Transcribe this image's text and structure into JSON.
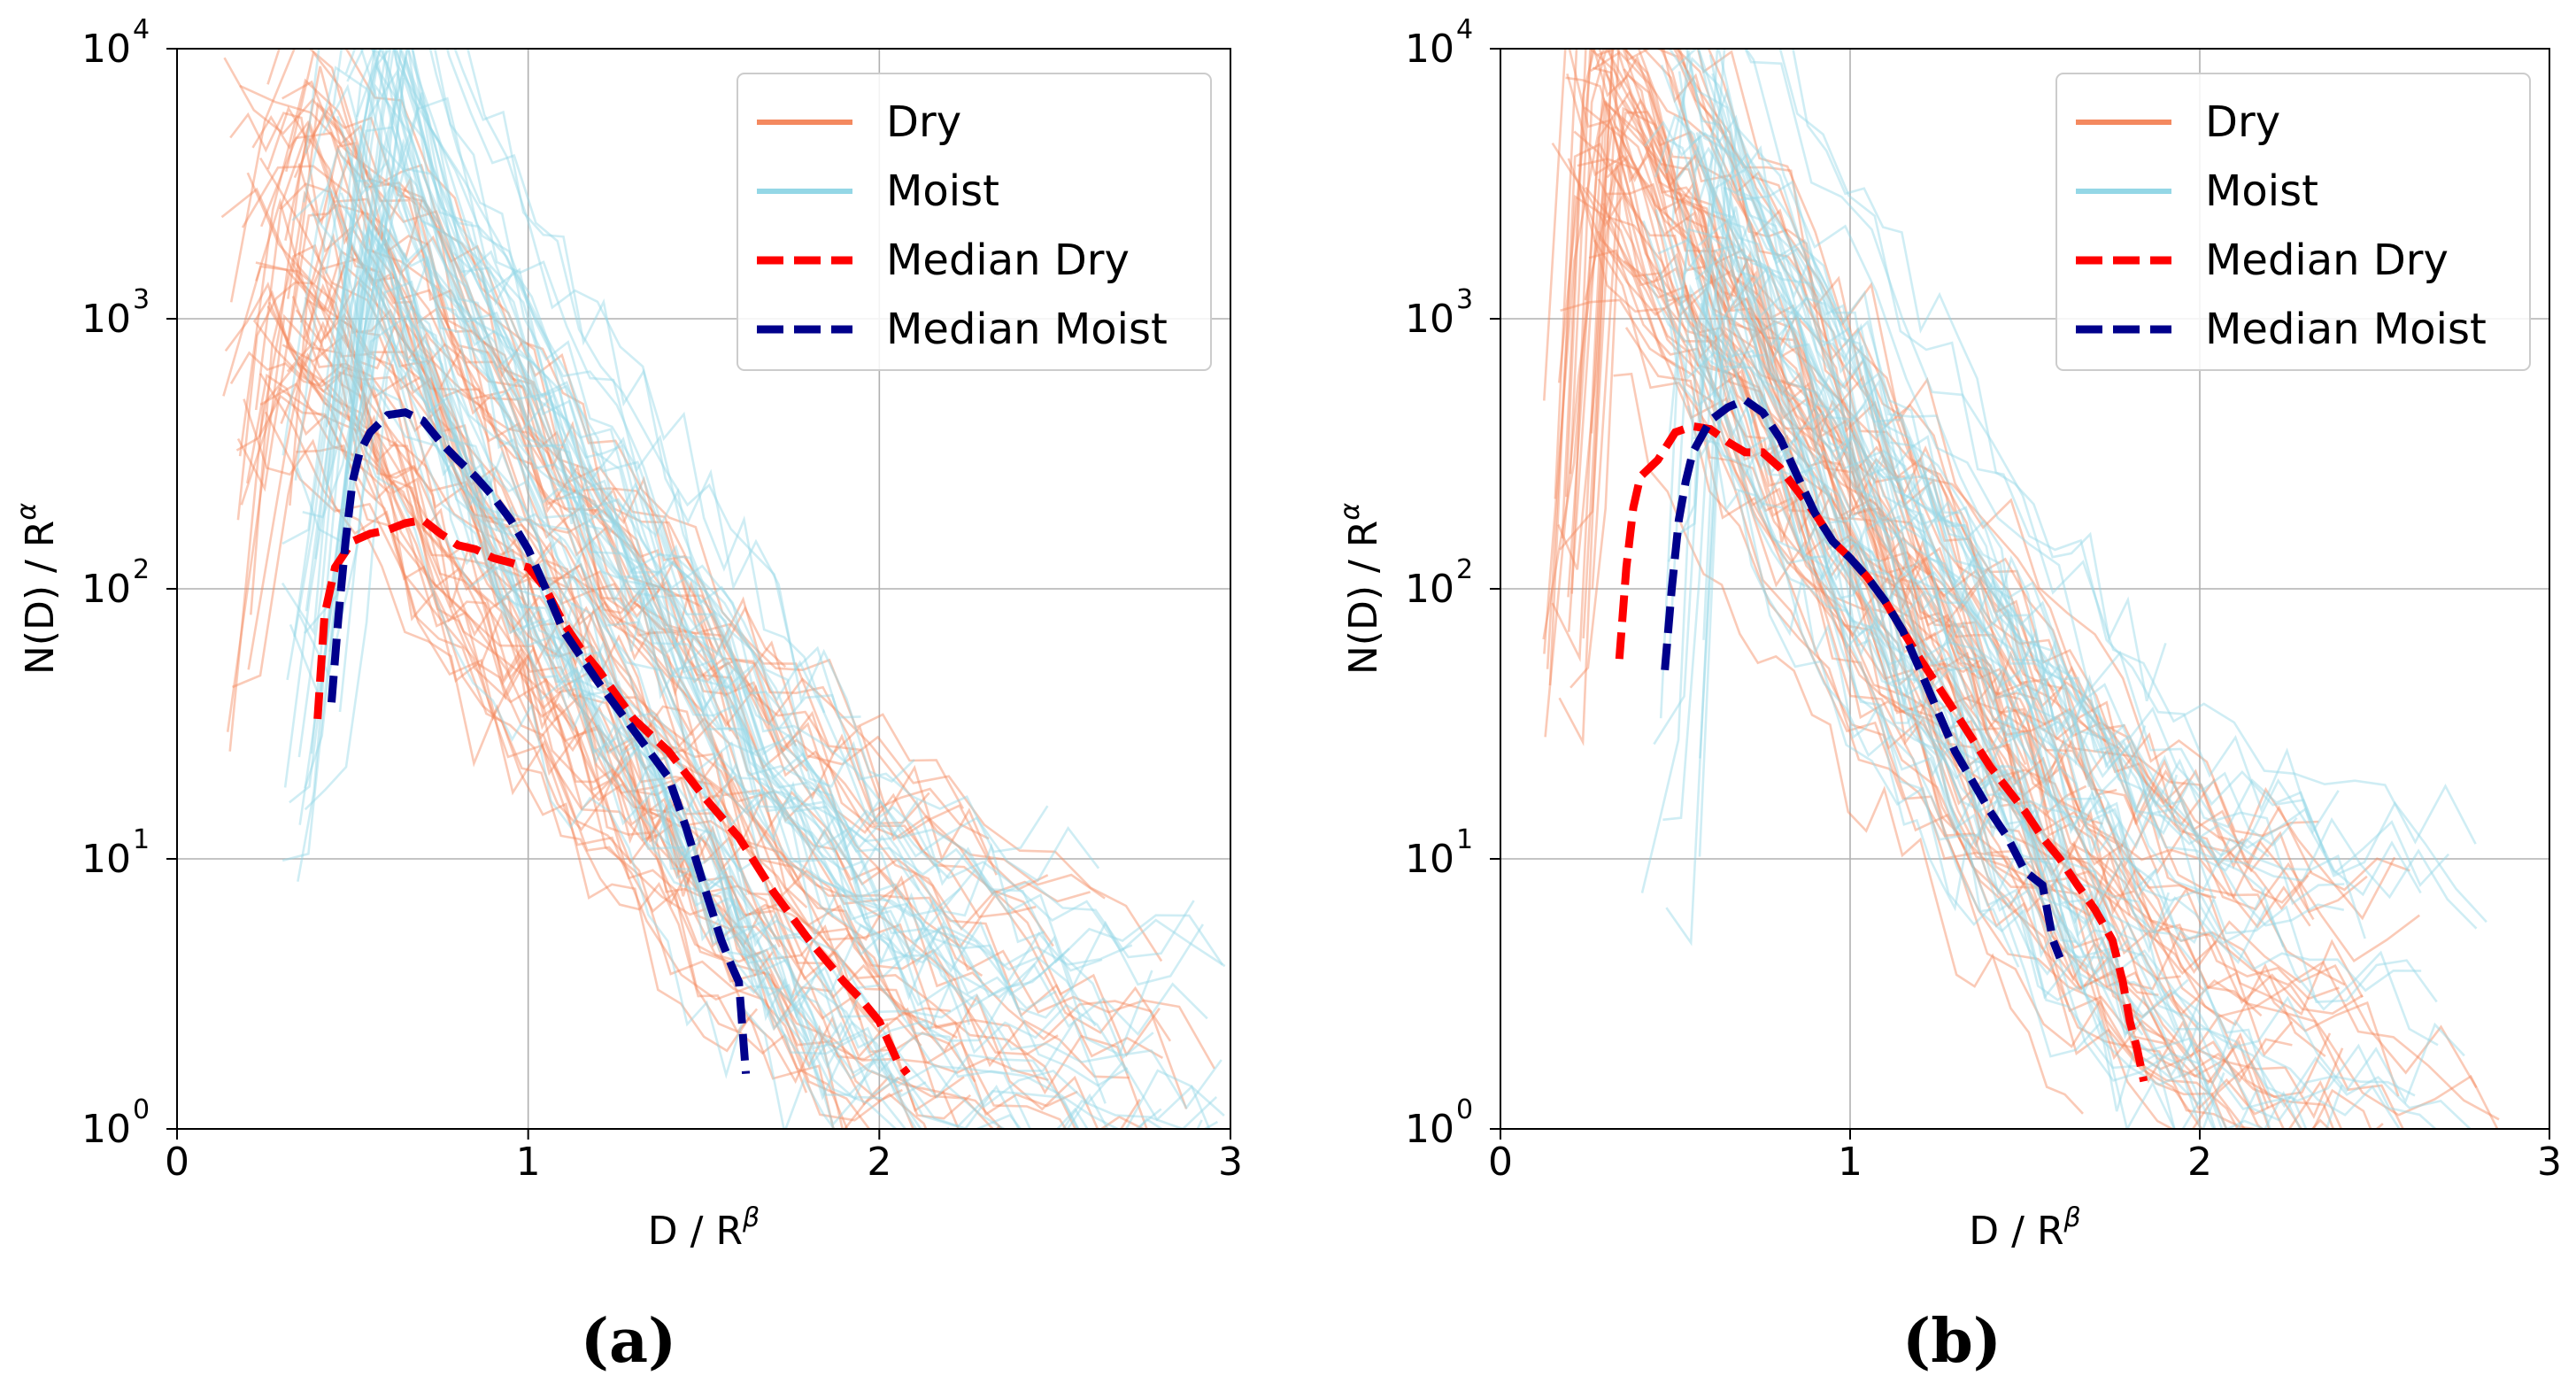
{
  "chart_data": [
    {
      "type": "line",
      "panel_label": "(a)",
      "xlabel": "D / R",
      "xlabel_sup": "β",
      "ylabel": "N(D) / R",
      "ylabel_sup": "α",
      "xlim": [
        0,
        3
      ],
      "ylim": [
        1,
        10000
      ],
      "yscale": "log",
      "grid": true,
      "legend_position": "top-right",
      "x_ticks": [
        0,
        1,
        2,
        3
      ],
      "x_tick_labels": [
        "0",
        "1",
        "2",
        "3"
      ],
      "y_ticks": [
        1,
        10,
        100,
        1000,
        10000
      ],
      "y_tick_bases": [
        "10",
        "10",
        "10",
        "10",
        "10"
      ],
      "y_tick_exps": [
        "0",
        "1",
        "2",
        "3",
        "4"
      ],
      "legend": [
        {
          "label": "Dry",
          "color": "#F4895F",
          "dash": false
        },
        {
          "label": "Moist",
          "color": "#94D7E6",
          "dash": false
        },
        {
          "label": "Median Dry",
          "color": "#FF0000",
          "dash": true
        },
        {
          "label": "Median Moist",
          "color": "#00008B",
          "dash": true
        }
      ],
      "series": [
        {
          "name": "Median Dry",
          "color": "#FF0000",
          "x": [
            0.4,
            0.42,
            0.45,
            0.5,
            0.55,
            0.6,
            0.65,
            0.7,
            0.75,
            0.8,
            0.85,
            0.9,
            0.95,
            1.0,
            1.05,
            1.1,
            1.15,
            1.2,
            1.3,
            1.4,
            1.5,
            1.6,
            1.7,
            1.8,
            1.9,
            1.95,
            2.0,
            2.05,
            2.08
          ],
          "y": [
            33,
            80,
            120,
            150,
            160,
            165,
            175,
            180,
            160,
            145,
            140,
            130,
            125,
            120,
            100,
            75,
            60,
            50,
            33,
            25,
            17,
            12,
            7.5,
            5,
            3.5,
            3,
            2.5,
            1.8,
            1.6
          ]
        },
        {
          "name": "Median Moist",
          "color": "#00008B",
          "x": [
            0.44,
            0.46,
            0.48,
            0.5,
            0.52,
            0.55,
            0.6,
            0.65,
            0.7,
            0.75,
            0.8,
            0.85,
            0.9,
            0.95,
            1.0,
            1.05,
            1.1,
            1.2,
            1.3,
            1.4,
            1.45,
            1.5,
            1.55,
            1.58,
            1.6,
            1.62
          ],
          "y": [
            38,
            80,
            150,
            250,
            320,
            380,
            440,
            450,
            420,
            350,
            300,
            260,
            220,
            180,
            140,
            100,
            70,
            45,
            30,
            20,
            13,
            8,
            5,
            4,
            3.5,
            1.6
          ]
        },
        {
          "name": "Dry",
          "color": "#F4895F",
          "x": [
            0.12,
            0.2,
            0.3,
            0.4,
            0.5,
            0.6,
            0.7,
            0.8,
            0.9,
            1.0,
            1.2,
            1.4,
            1.6,
            1.8,
            2.0,
            2.2,
            2.4,
            2.6,
            2.8,
            3.0
          ],
          "y": [
            100,
            1500,
            2200,
            1800,
            1300,
            900,
            500,
            300,
            200,
            130,
            60,
            30,
            15,
            8,
            5,
            3.5,
            2.5,
            1.8,
            1.3,
            1.0
          ]
        },
        {
          "name": "Moist",
          "color": "#94D7E6",
          "x": [
            0.3,
            0.4,
            0.45,
            0.5,
            0.55,
            0.6,
            0.7,
            0.8,
            0.9,
            1.0,
            1.2,
            1.4,
            1.6,
            1.8,
            2.0,
            2.2,
            2.4,
            2.6,
            2.8,
            3.0
          ],
          "y": [
            50,
            700,
            2500,
            6000,
            6500,
            3500,
            1500,
            700,
            400,
            250,
            100,
            40,
            15,
            7,
            4,
            3,
            2.5,
            2,
            1.8,
            1.6
          ]
        }
      ]
    },
    {
      "type": "line",
      "panel_label": "(b)",
      "xlabel": "D / R",
      "xlabel_sup": "β",
      "ylabel": "N(D) / R",
      "ylabel_sup": "α",
      "xlim": [
        0,
        3
      ],
      "ylim": [
        1,
        10000
      ],
      "yscale": "log",
      "grid": true,
      "legend_position": "top-right",
      "x_ticks": [
        0,
        1,
        2,
        3
      ],
      "x_tick_labels": [
        "0",
        "1",
        "2",
        "3"
      ],
      "y_ticks": [
        1,
        10,
        100,
        1000,
        10000
      ],
      "y_tick_bases": [
        "10",
        "10",
        "10",
        "10",
        "10"
      ],
      "y_tick_exps": [
        "0",
        "1",
        "2",
        "3",
        "4"
      ],
      "legend": [
        {
          "label": "Dry",
          "color": "#F4895F",
          "dash": false
        },
        {
          "label": "Moist",
          "color": "#94D7E6",
          "dash": false
        },
        {
          "label": "Median Dry",
          "color": "#FF0000",
          "dash": true
        },
        {
          "label": "Median Moist",
          "color": "#00008B",
          "dash": true
        }
      ],
      "series": [
        {
          "name": "Median Dry",
          "color": "#FF0000",
          "x": [
            0.34,
            0.36,
            0.38,
            0.4,
            0.45,
            0.5,
            0.55,
            0.6,
            0.65,
            0.7,
            0.75,
            0.8,
            0.85,
            0.9,
            0.95,
            1.0,
            1.05,
            1.1,
            1.15,
            1.2,
            1.3,
            1.4,
            1.5,
            1.55,
            1.6,
            1.65,
            1.7,
            1.75,
            1.78,
            1.8,
            1.82,
            1.84
          ],
          "y": [
            55,
            120,
            200,
            260,
            300,
            380,
            400,
            390,
            350,
            320,
            320,
            280,
            230,
            190,
            150,
            130,
            110,
            90,
            70,
            55,
            35,
            22,
            15,
            12,
            10,
            8,
            6.5,
            5,
            3.5,
            2.5,
            2,
            1.5
          ]
        },
        {
          "name": "Median Moist",
          "color": "#00008B",
          "x": [
            0.47,
            0.49,
            0.51,
            0.53,
            0.55,
            0.6,
            0.65,
            0.7,
            0.75,
            0.8,
            0.85,
            0.9,
            0.95,
            1.0,
            1.05,
            1.1,
            1.15,
            1.2,
            1.3,
            1.4,
            1.45,
            1.5,
            1.55,
            1.58,
            1.6
          ],
          "y": [
            50,
            100,
            180,
            250,
            320,
            420,
            470,
            500,
            450,
            360,
            260,
            190,
            150,
            130,
            110,
            90,
            70,
            50,
            25,
            15,
            12,
            9,
            8,
            5,
            4.3
          ]
        },
        {
          "name": "Dry",
          "color": "#F4895F",
          "x": [
            0.12,
            0.15,
            0.2,
            0.25,
            0.3,
            0.4,
            0.5,
            0.6,
            0.7,
            0.8,
            0.9,
            1.0,
            1.2,
            1.4,
            1.6,
            1.8,
            2.0,
            2.2,
            2.4,
            2.6,
            2.9
          ],
          "y": [
            70,
            3000,
            9800,
            7000,
            5000,
            3000,
            2000,
            1200,
            700,
            400,
            250,
            150,
            60,
            25,
            12,
            6,
            4,
            3,
            2.5,
            1.8,
            1.2
          ]
        },
        {
          "name": "Moist",
          "color": "#94D7E6",
          "x": [
            0.4,
            0.45,
            0.5,
            0.55,
            0.6,
            0.7,
            0.8,
            0.9,
            1.0,
            1.2,
            1.4,
            1.6,
            1.8,
            2.0,
            2.2,
            2.4,
            2.6,
            2.9
          ],
          "y": [
            30,
            1500,
            5000,
            4500,
            3000,
            1600,
            900,
            500,
            300,
            110,
            45,
            18,
            8,
            5,
            4,
            3.5,
            3,
            1.8
          ]
        }
      ]
    }
  ]
}
